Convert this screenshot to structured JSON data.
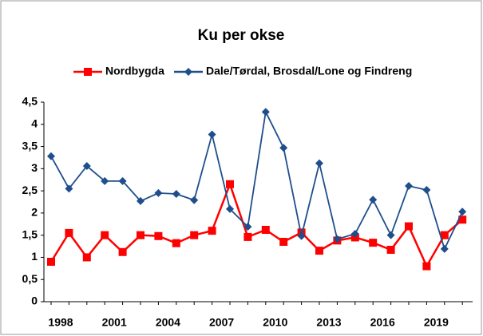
{
  "chart_data": {
    "type": "line",
    "title": "Ku per okse",
    "categories": [
      "1998",
      null,
      null,
      "2001",
      null,
      null,
      "2004",
      null,
      null,
      "2007",
      null,
      null,
      "2010",
      null,
      null,
      "2013",
      null,
      null,
      "2016",
      null,
      null,
      "2019",
      null,
      null
    ],
    "series": [
      {
        "name": "Nordbygda",
        "color": "#ff0000",
        "marker": "square",
        "values": [
          0.9,
          1.55,
          1.0,
          1.5,
          1.12,
          1.5,
          1.48,
          1.32,
          1.5,
          1.6,
          2.65,
          1.46,
          1.62,
          1.35,
          1.56,
          1.15,
          1.38,
          1.45,
          1.33,
          1.17,
          1.7,
          0.8,
          1.5,
          1.85
        ]
      },
      {
        "name": "Dale/Tørdal, Brosdal/Lone og Findreng",
        "color": "#1f4e8c",
        "marker": "diamond",
        "values": [
          3.28,
          2.55,
          3.06,
          2.72,
          2.72,
          2.27,
          2.45,
          2.43,
          2.29,
          3.77,
          2.09,
          1.69,
          4.28,
          3.47,
          1.48,
          3.12,
          1.41,
          1.53,
          2.3,
          1.5,
          2.61,
          2.52,
          1.19,
          2.03
        ]
      }
    ],
    "ylim": [
      0,
      4.5
    ],
    "yticks": [
      0,
      {
        "value": 0.5,
        "label": "0,5"
      },
      1,
      {
        "value": 1.5,
        "label": "1,5"
      },
      2,
      {
        "value": 2.5,
        "label": "2,5"
      },
      3,
      {
        "value": 3.5,
        "label": "3,5"
      },
      4,
      {
        "value": 4.5,
        "label": "4,5"
      }
    ],
    "legend": "top",
    "grid": false
  }
}
